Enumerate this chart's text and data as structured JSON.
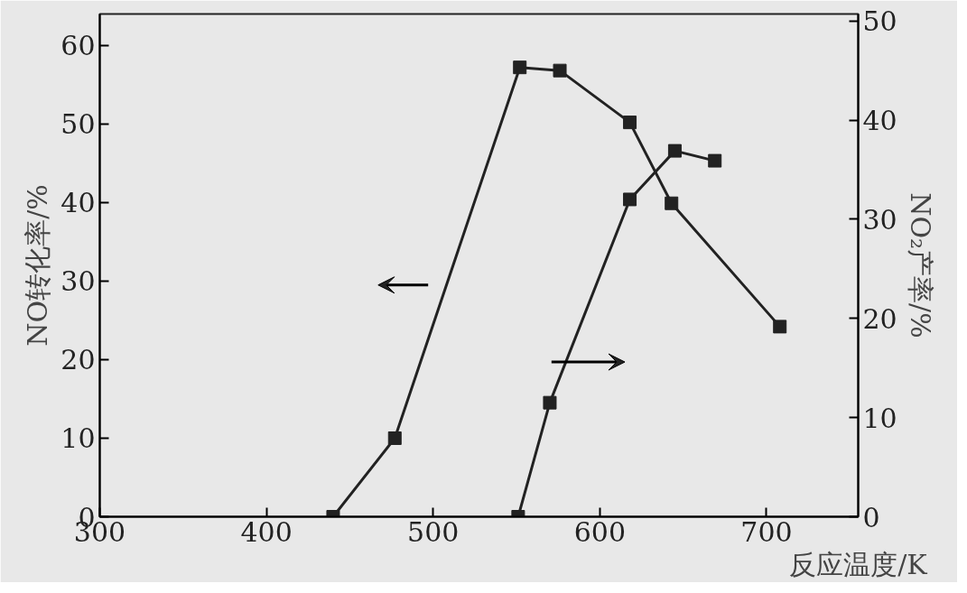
{
  "chart_data": {
    "type": "line",
    "xlabel": "反应温度/K",
    "ylabel": "NO转化率/%",
    "y2label": "NO₂产率/%",
    "xlim": [
      300,
      755
    ],
    "xticks": [
      300,
      400,
      500,
      600,
      700
    ],
    "ylim": [
      0,
      64
    ],
    "yticks": [
      0,
      10,
      20,
      30,
      40,
      50,
      60
    ],
    "y2lim": [
      0,
      50.7
    ],
    "y2ticks": [
      0,
      10,
      20,
      30,
      40,
      50
    ],
    "marker": "square",
    "grid": false,
    "series": [
      {
        "color": "#222222",
        "x": [
          440,
          477,
          552,
          576,
          618,
          643,
          708
        ],
        "values": [
          0,
          10,
          57.2,
          56.8,
          50.2,
          39.9,
          24.2
        ]
      },
      {
        "color": "#222222",
        "axis": "y2",
        "x": [
          551,
          570,
          618,
          645,
          669
        ],
        "values": [
          0,
          11.5,
          32,
          36.9,
          35.9
        ]
      }
    ]
  }
}
